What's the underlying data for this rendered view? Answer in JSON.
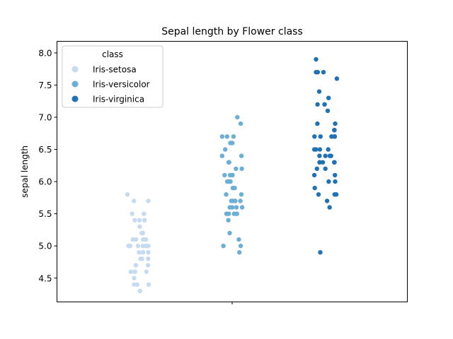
{
  "chart_data": {
    "type": "scatter",
    "title": "Sepal length by Flower class",
    "xlabel": "",
    "ylabel": "sepal length",
    "ylim": [
      4.13,
      8.18
    ],
    "yticks": [
      4.5,
      5.0,
      5.5,
      6.0,
      6.5,
      7.0,
      7.5,
      8.0
    ],
    "ytick_labels": [
      "4.5",
      "5.0",
      "5.5",
      "6.0",
      "6.5",
      "7.0",
      "7.5",
      "8.0"
    ],
    "grid": false,
    "legend": {
      "title": "class",
      "placement": "top-left"
    },
    "series": [
      {
        "name": "Iris-setosa",
        "color": "#c6dbef",
        "values": [
          5.8,
          5.7,
          5.7,
          5.5,
          5.5,
          5.4,
          5.4,
          5.4,
          5.4,
          5.3,
          5.2,
          5.2,
          5.1,
          5.1,
          5.1,
          5.1,
          5.1,
          5.0,
          5.0,
          5.0,
          5.0,
          5.0,
          5.0,
          4.9,
          4.9,
          4.9,
          4.8,
          4.8,
          4.8,
          4.7,
          4.7,
          4.6,
          4.6,
          4.6,
          4.6,
          4.5,
          4.4,
          4.4,
          4.4,
          4.3
        ]
      },
      {
        "name": "Iris-versicolor",
        "color": "#6baed6",
        "values": [
          7.0,
          6.9,
          6.7,
          6.7,
          6.7,
          6.6,
          6.6,
          6.5,
          6.4,
          6.4,
          6.3,
          6.3,
          6.2,
          6.2,
          6.1,
          6.1,
          6.1,
          6.0,
          6.0,
          6.0,
          6.0,
          5.9,
          5.9,
          5.8,
          5.8,
          5.7,
          5.7,
          5.7,
          5.7,
          5.7,
          5.6,
          5.6,
          5.6,
          5.6,
          5.5,
          5.5,
          5.5,
          5.5,
          5.4,
          5.2,
          5.1,
          5.0,
          5.0,
          4.9
        ]
      },
      {
        "name": "Iris-virginica",
        "color": "#2171b5",
        "values": [
          7.9,
          7.7,
          7.7,
          7.7,
          7.6,
          7.4,
          7.3,
          7.2,
          7.2,
          7.1,
          6.9,
          6.9,
          6.8,
          6.8,
          6.7,
          6.7,
          6.7,
          6.7,
          6.7,
          6.5,
          6.5,
          6.5,
          6.5,
          6.4,
          6.4,
          6.4,
          6.4,
          6.3,
          6.3,
          6.3,
          6.3,
          6.3,
          6.2,
          6.2,
          6.1,
          6.1,
          6.0,
          6.0,
          5.9,
          5.8,
          5.8,
          5.8,
          5.7,
          5.6,
          4.9
        ]
      }
    ]
  }
}
